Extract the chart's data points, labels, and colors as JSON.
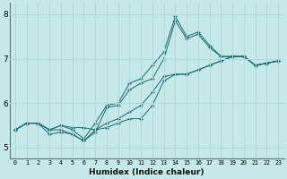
{
  "xlabel": "Humidex (Indice chaleur)",
  "bg_color": "#c5e8e8",
  "line_color": "#1a6b6b",
  "grid_color": "#b0d8d8",
  "xlim": [
    -0.5,
    23.5
  ],
  "ylim": [
    4.75,
    8.25
  ],
  "yticks": [
    5,
    6,
    7,
    8
  ],
  "xtick_labels": [
    "0",
    "1",
    "2",
    "3",
    "4",
    "5",
    "6",
    "7",
    "8",
    "9",
    "10",
    "11",
    "12",
    "13",
    "14",
    "15",
    "16",
    "17",
    "18",
    "19",
    "20",
    "21",
    "22",
    "23"
  ],
  "series": [
    [
      5.4,
      5.55,
      5.55,
      5.4,
      5.5,
      5.4,
      5.2,
      5.55,
      5.95,
      6.0,
      6.45,
      6.55,
      6.85,
      7.15,
      7.95,
      7.5,
      7.6,
      7.3,
      7.05,
      7.05,
      7.05,
      6.85,
      6.9,
      6.95
    ],
    [
      5.4,
      5.55,
      5.55,
      5.4,
      5.5,
      5.45,
      5.45,
      5.4,
      5.55,
      5.65,
      5.8,
      5.95,
      6.25,
      6.6,
      6.65,
      6.65,
      6.75,
      6.85,
      6.95,
      7.05,
      7.05,
      6.85,
      6.9,
      6.95
    ],
    [
      5.4,
      5.55,
      5.55,
      5.3,
      5.35,
      5.3,
      5.15,
      5.4,
      5.45,
      5.55,
      5.65,
      5.65,
      5.95,
      6.5,
      6.65,
      6.65,
      6.75,
      6.85,
      6.95,
      7.05,
      7.05,
      6.85,
      6.9,
      6.95
    ],
    [
      5.4,
      5.55,
      5.55,
      5.4,
      5.4,
      5.3,
      5.15,
      5.35,
      5.9,
      5.95,
      6.3,
      6.45,
      6.55,
      7.0,
      7.85,
      7.45,
      7.55,
      7.25,
      7.05,
      7.05,
      7.05,
      6.85,
      6.9,
      6.95
    ]
  ]
}
